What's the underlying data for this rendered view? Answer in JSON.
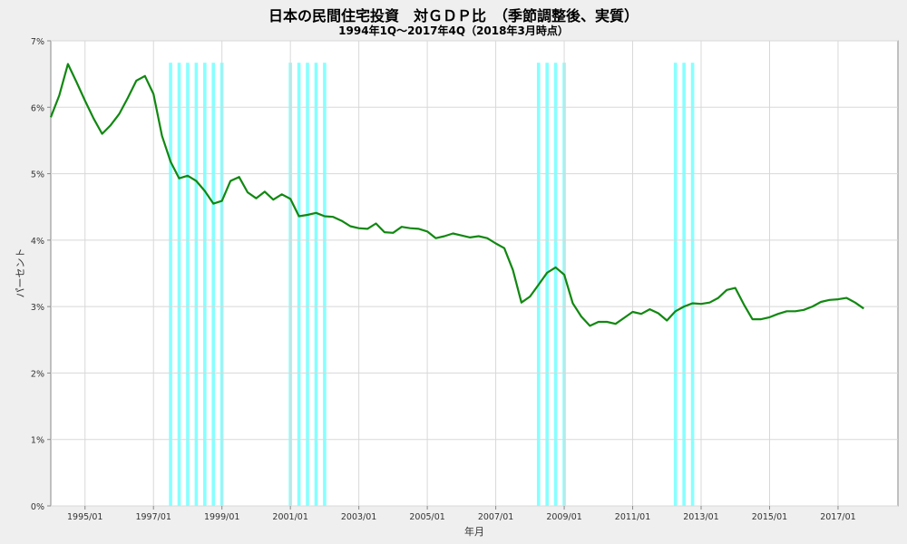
{
  "chart_data": {
    "type": "line",
    "title": "日本の民間住宅投資　対ＧＤＰ比　（季節調整後、実質）",
    "subtitle": "1994年1Q～2017年4Q（2018年3月時点）",
    "xlabel": "年月",
    "ylabel": "パーセント",
    "ylim": [
      0,
      7
    ],
    "xlim": [
      1994.0,
      2018.75
    ],
    "grid": true,
    "line_color": "#118811",
    "band_color": "#88ffff",
    "y_ticks": [
      {
        "value": 0,
        "label": "0%"
      },
      {
        "value": 1,
        "label": "1%"
      },
      {
        "value": 2,
        "label": "2%"
      },
      {
        "value": 3,
        "label": "3%"
      },
      {
        "value": 4,
        "label": "4%"
      },
      {
        "value": 5,
        "label": "5%"
      },
      {
        "value": 6,
        "label": "6%"
      },
      {
        "value": 7,
        "label": "7%"
      }
    ],
    "x_ticks": [
      {
        "value": 1995.0,
        "label": "1995/01"
      },
      {
        "value": 1997.0,
        "label": "1997/01"
      },
      {
        "value": 1999.0,
        "label": "1999/01"
      },
      {
        "value": 2001.0,
        "label": "2001/01"
      },
      {
        "value": 2003.0,
        "label": "2003/01"
      },
      {
        "value": 2005.0,
        "label": "2005/01"
      },
      {
        "value": 2007.0,
        "label": "2007/01"
      },
      {
        "value": 2009.0,
        "label": "2009/01"
      },
      {
        "value": 2011.0,
        "label": "2011/01"
      },
      {
        "value": 2013.0,
        "label": "2013/01"
      },
      {
        "value": 2015.0,
        "label": "2015/01"
      },
      {
        "value": 2017.0,
        "label": "2017/01"
      }
    ],
    "recession_quarters": [
      1997.5,
      1997.75,
      1998.0,
      1998.25,
      1998.5,
      1998.75,
      1999.0,
      2001.0,
      2001.25,
      2001.5,
      2001.75,
      2002.0,
      2008.25,
      2008.5,
      2008.75,
      2009.0,
      2012.25,
      2012.5,
      2012.75
    ],
    "series": [
      {
        "x": [
          1994.0,
          1994.25,
          1994.5,
          1994.75,
          1995.0,
          1995.25,
          1995.5,
          1995.75,
          1996.0,
          1996.25,
          1996.5,
          1996.75,
          1997.0,
          1997.25,
          1997.5,
          1997.75,
          1998.0,
          1998.25,
          1998.5,
          1998.75,
          1999.0,
          1999.25,
          1999.5,
          1999.75,
          2000.0,
          2000.25,
          2000.5,
          2000.75,
          2001.0,
          2001.25,
          2001.5,
          2001.75,
          2002.0,
          2002.25,
          2002.5,
          2002.75,
          2003.0,
          2003.25,
          2003.5,
          2003.75,
          2004.0,
          2004.25,
          2004.5,
          2004.75,
          2005.0,
          2005.25,
          2005.5,
          2005.75,
          2006.0,
          2006.25,
          2006.5,
          2006.75,
          2007.0,
          2007.25,
          2007.5,
          2007.75,
          2008.0,
          2008.25,
          2008.5,
          2008.75,
          2009.0,
          2009.25,
          2009.5,
          2009.75,
          2010.0,
          2010.25,
          2010.5,
          2010.75,
          2011.0,
          2011.25,
          2011.5,
          2011.75,
          2012.0,
          2012.25,
          2012.5,
          2012.75,
          2013.0,
          2013.25,
          2013.5,
          2013.75,
          2014.0,
          2014.25,
          2014.5,
          2014.75,
          2015.0,
          2015.25,
          2015.5,
          2015.75,
          2016.0,
          2016.25,
          2016.5,
          2016.75,
          2017.0,
          2017.25,
          2017.5,
          2017.75
        ],
        "y": [
          5.85,
          6.18,
          6.65,
          6.38,
          6.1,
          5.83,
          5.6,
          5.73,
          5.9,
          6.14,
          6.4,
          6.47,
          6.2,
          5.57,
          5.18,
          4.93,
          4.97,
          4.89,
          4.74,
          4.55,
          4.59,
          4.89,
          4.95,
          4.72,
          4.63,
          4.73,
          4.61,
          4.69,
          4.62,
          4.36,
          4.38,
          4.41,
          4.36,
          4.35,
          4.29,
          4.21,
          4.18,
          4.17,
          4.25,
          4.12,
          4.11,
          4.2,
          4.18,
          4.17,
          4.13,
          4.03,
          4.06,
          4.1,
          4.07,
          4.04,
          4.06,
          4.03,
          3.95,
          3.88,
          3.55,
          3.06,
          3.15,
          3.33,
          3.51,
          3.59,
          3.48,
          3.05,
          2.85,
          2.71,
          2.77,
          2.77,
          2.74,
          2.83,
          2.92,
          2.89,
          2.96,
          2.9,
          2.79,
          2.93,
          3.0,
          3.05,
          3.04,
          3.06,
          3.13,
          3.25,
          3.28,
          3.03,
          2.81,
          2.81,
          2.84,
          2.89,
          2.93,
          2.93,
          2.95,
          3.0,
          3.07,
          3.1,
          3.11,
          3.13,
          3.06,
          2.97
        ]
      }
    ]
  }
}
